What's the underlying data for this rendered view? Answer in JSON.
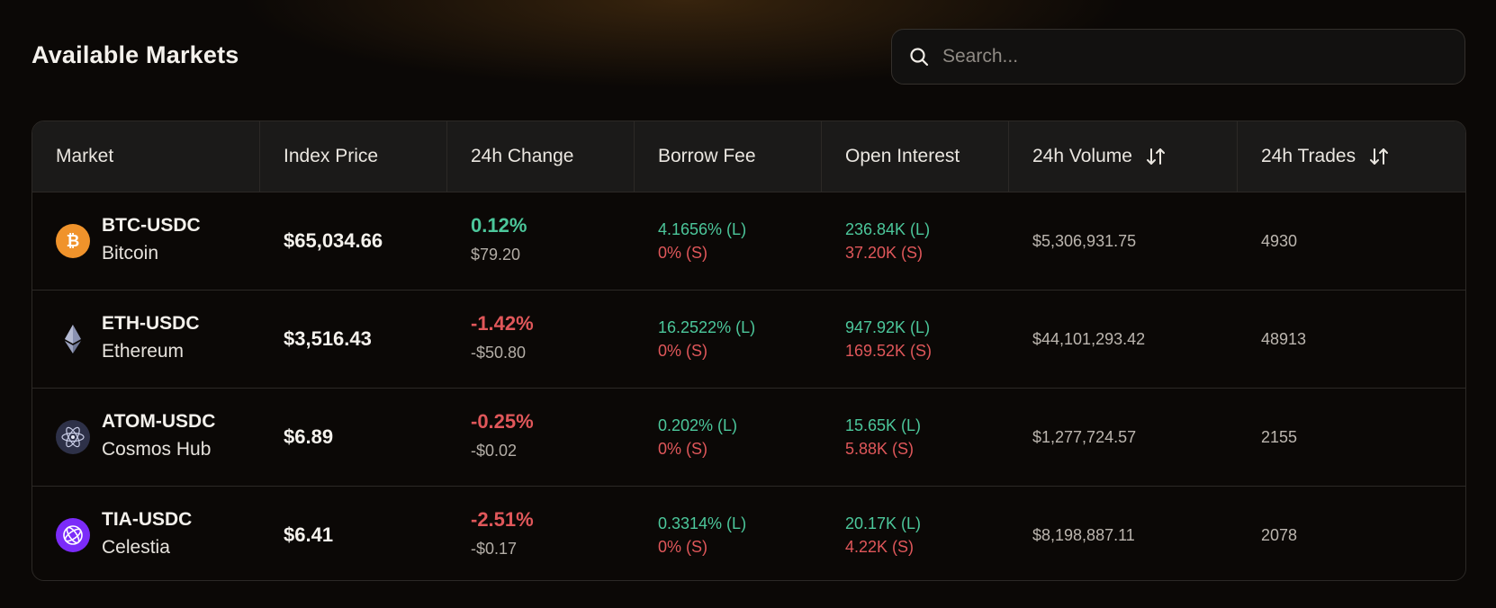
{
  "page": {
    "title": "Available Markets"
  },
  "search": {
    "placeholder": "Search...",
    "value": "",
    "icon": "search-icon"
  },
  "colors": {
    "positive": "#4cc79b",
    "negative": "#e0575a",
    "background": "#0b0806",
    "header_bg": "#1b1a19"
  },
  "table": {
    "columns": [
      {
        "label": "Market",
        "sortable": false
      },
      {
        "label": "Index Price",
        "sortable": false
      },
      {
        "label": "24h Change",
        "sortable": false
      },
      {
        "label": "Borrow Fee",
        "sortable": false
      },
      {
        "label": "Open Interest",
        "sortable": false
      },
      {
        "label": "24h Volume",
        "sortable": true
      },
      {
        "label": "24h Trades",
        "sortable": true
      }
    ],
    "rows": [
      {
        "symbol": "BTC-USDC",
        "name": "Bitcoin",
        "icon": "bitcoin-icon",
        "icon_color": "#f0932b",
        "price": "$65,034.66",
        "change_pct": "0.12%",
        "change_abs": "$79.20",
        "change_direction": "positive",
        "borrow_long": "4.1656% (L)",
        "borrow_short": "0% (S)",
        "oi_long": "236.84K (L)",
        "oi_short": "37.20K (S)",
        "volume": "$5,306,931.75",
        "trades": "4930"
      },
      {
        "symbol": "ETH-USDC",
        "name": "Ethereum",
        "icon": "ethereum-icon",
        "icon_color": "#8a92b2",
        "price": "$3,516.43",
        "change_pct": "-1.42%",
        "change_abs": "-$50.80",
        "change_direction": "negative",
        "borrow_long": "16.2522% (L)",
        "borrow_short": "0% (S)",
        "oi_long": "947.92K (L)",
        "oi_short": "169.52K (S)",
        "volume": "$44,101,293.42",
        "trades": "48913"
      },
      {
        "symbol": "ATOM-USDC",
        "name": "Cosmos Hub",
        "icon": "cosmos-icon",
        "icon_color": "#2e3148",
        "price": "$6.89",
        "change_pct": "-0.25%",
        "change_abs": "-$0.02",
        "change_direction": "negative",
        "borrow_long": "0.202% (L)",
        "borrow_short": "0% (S)",
        "oi_long": "15.65K (L)",
        "oi_short": "5.88K (S)",
        "volume": "$1,277,724.57",
        "trades": "2155"
      },
      {
        "symbol": "TIA-USDC",
        "name": "Celestia",
        "icon": "celestia-icon",
        "icon_color": "#7b2bf9",
        "price": "$6.41",
        "change_pct": "-2.51%",
        "change_abs": "-$0.17",
        "change_direction": "negative",
        "borrow_long": "0.3314% (L)",
        "borrow_short": "0% (S)",
        "oi_long": "20.17K (L)",
        "oi_short": "4.22K (S)",
        "volume": "$8,198,887.11",
        "trades": "2078"
      }
    ]
  }
}
